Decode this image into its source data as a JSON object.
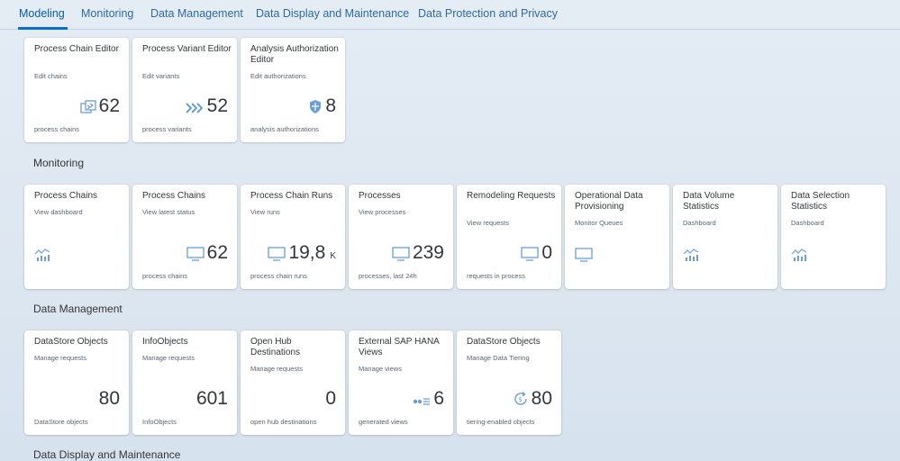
{
  "tabs": [
    {
      "label": "Modeling",
      "active": true
    },
    {
      "label": "Monitoring"
    },
    {
      "label": "Data Management"
    },
    {
      "label": "Data Display and Maintenance"
    },
    {
      "label": "Data Protection and Privacy"
    }
  ],
  "sections": {
    "monitoring": "Monitoring",
    "data_management": "Data Management",
    "data_display": "Data Display and Maintenance"
  },
  "modeling_tiles": [
    {
      "title": "Process Chain Editor",
      "subtitle": "Edit chains",
      "value": "62",
      "footer": "process chains",
      "icon": "process-chain-icon"
    },
    {
      "title": "Process Variant Editor",
      "subtitle": "Edit variants",
      "value": "52",
      "footer": "process variants",
      "icon": "chevrons-icon"
    },
    {
      "title": "Analysis Authorization Editor",
      "subtitle": "Edit authorizations",
      "value": "8",
      "footer": "analysis authorizations",
      "icon": "shield-icon"
    }
  ],
  "monitoring_tiles": [
    {
      "title": "Process Chains",
      "subtitle": "View dashboard",
      "icon": "line-chart-icon"
    },
    {
      "title": "Process Chains",
      "subtitle": "View latest status",
      "value": "62",
      "footer": "process chains",
      "icon": "monitor-icon"
    },
    {
      "title": "Process Chain Runs",
      "subtitle": "View runs",
      "value": "19,8",
      "scale": "K",
      "footer": "process chain runs",
      "icon": "monitor-icon"
    },
    {
      "title": "Processes",
      "subtitle": "View processes",
      "value": "239",
      "footer": "processes, last 24h",
      "icon": "monitor-icon"
    },
    {
      "title": "Remodeling Requests",
      "subtitle": "View requests",
      "value": "0",
      "footer": "requests in process",
      "icon": "monitor-icon"
    },
    {
      "title": "Operational Data Provisioning",
      "subtitle": "Monitor Queues",
      "icon": "monitor-icon"
    },
    {
      "title": "Data Volume Statistics",
      "subtitle": "Dashboard",
      "icon": "line-chart-icon"
    },
    {
      "title": "Data Selection Statistics",
      "subtitle": "Dashboard",
      "icon": "line-chart-icon"
    }
  ],
  "data_management_tiles": [
    {
      "title": "DataStore Objects",
      "subtitle": "Manage requests",
      "value": "80",
      "footer": "DataStore objects"
    },
    {
      "title": "InfoObjects",
      "subtitle": "Manage requests",
      "value": "601",
      "footer": "InfoObjects"
    },
    {
      "title": "Open Hub Destinations",
      "subtitle": "Manage requests",
      "value": "0",
      "footer": "open hub destinations"
    },
    {
      "title": "External SAP HANA Views",
      "subtitle": "Manage views",
      "value": "6",
      "footer": "generated views",
      "icon": "hana-views-icon"
    },
    {
      "title": "DataStore Objects",
      "subtitle": "Manage Data Tiering",
      "value": "80",
      "footer": "tiering-enabled objects",
      "icon": "tiering-icon"
    }
  ],
  "colors": {
    "accent": "#0a6ed1",
    "icon": "#6a9fd4",
    "tab_text": "#2f6aa3"
  }
}
